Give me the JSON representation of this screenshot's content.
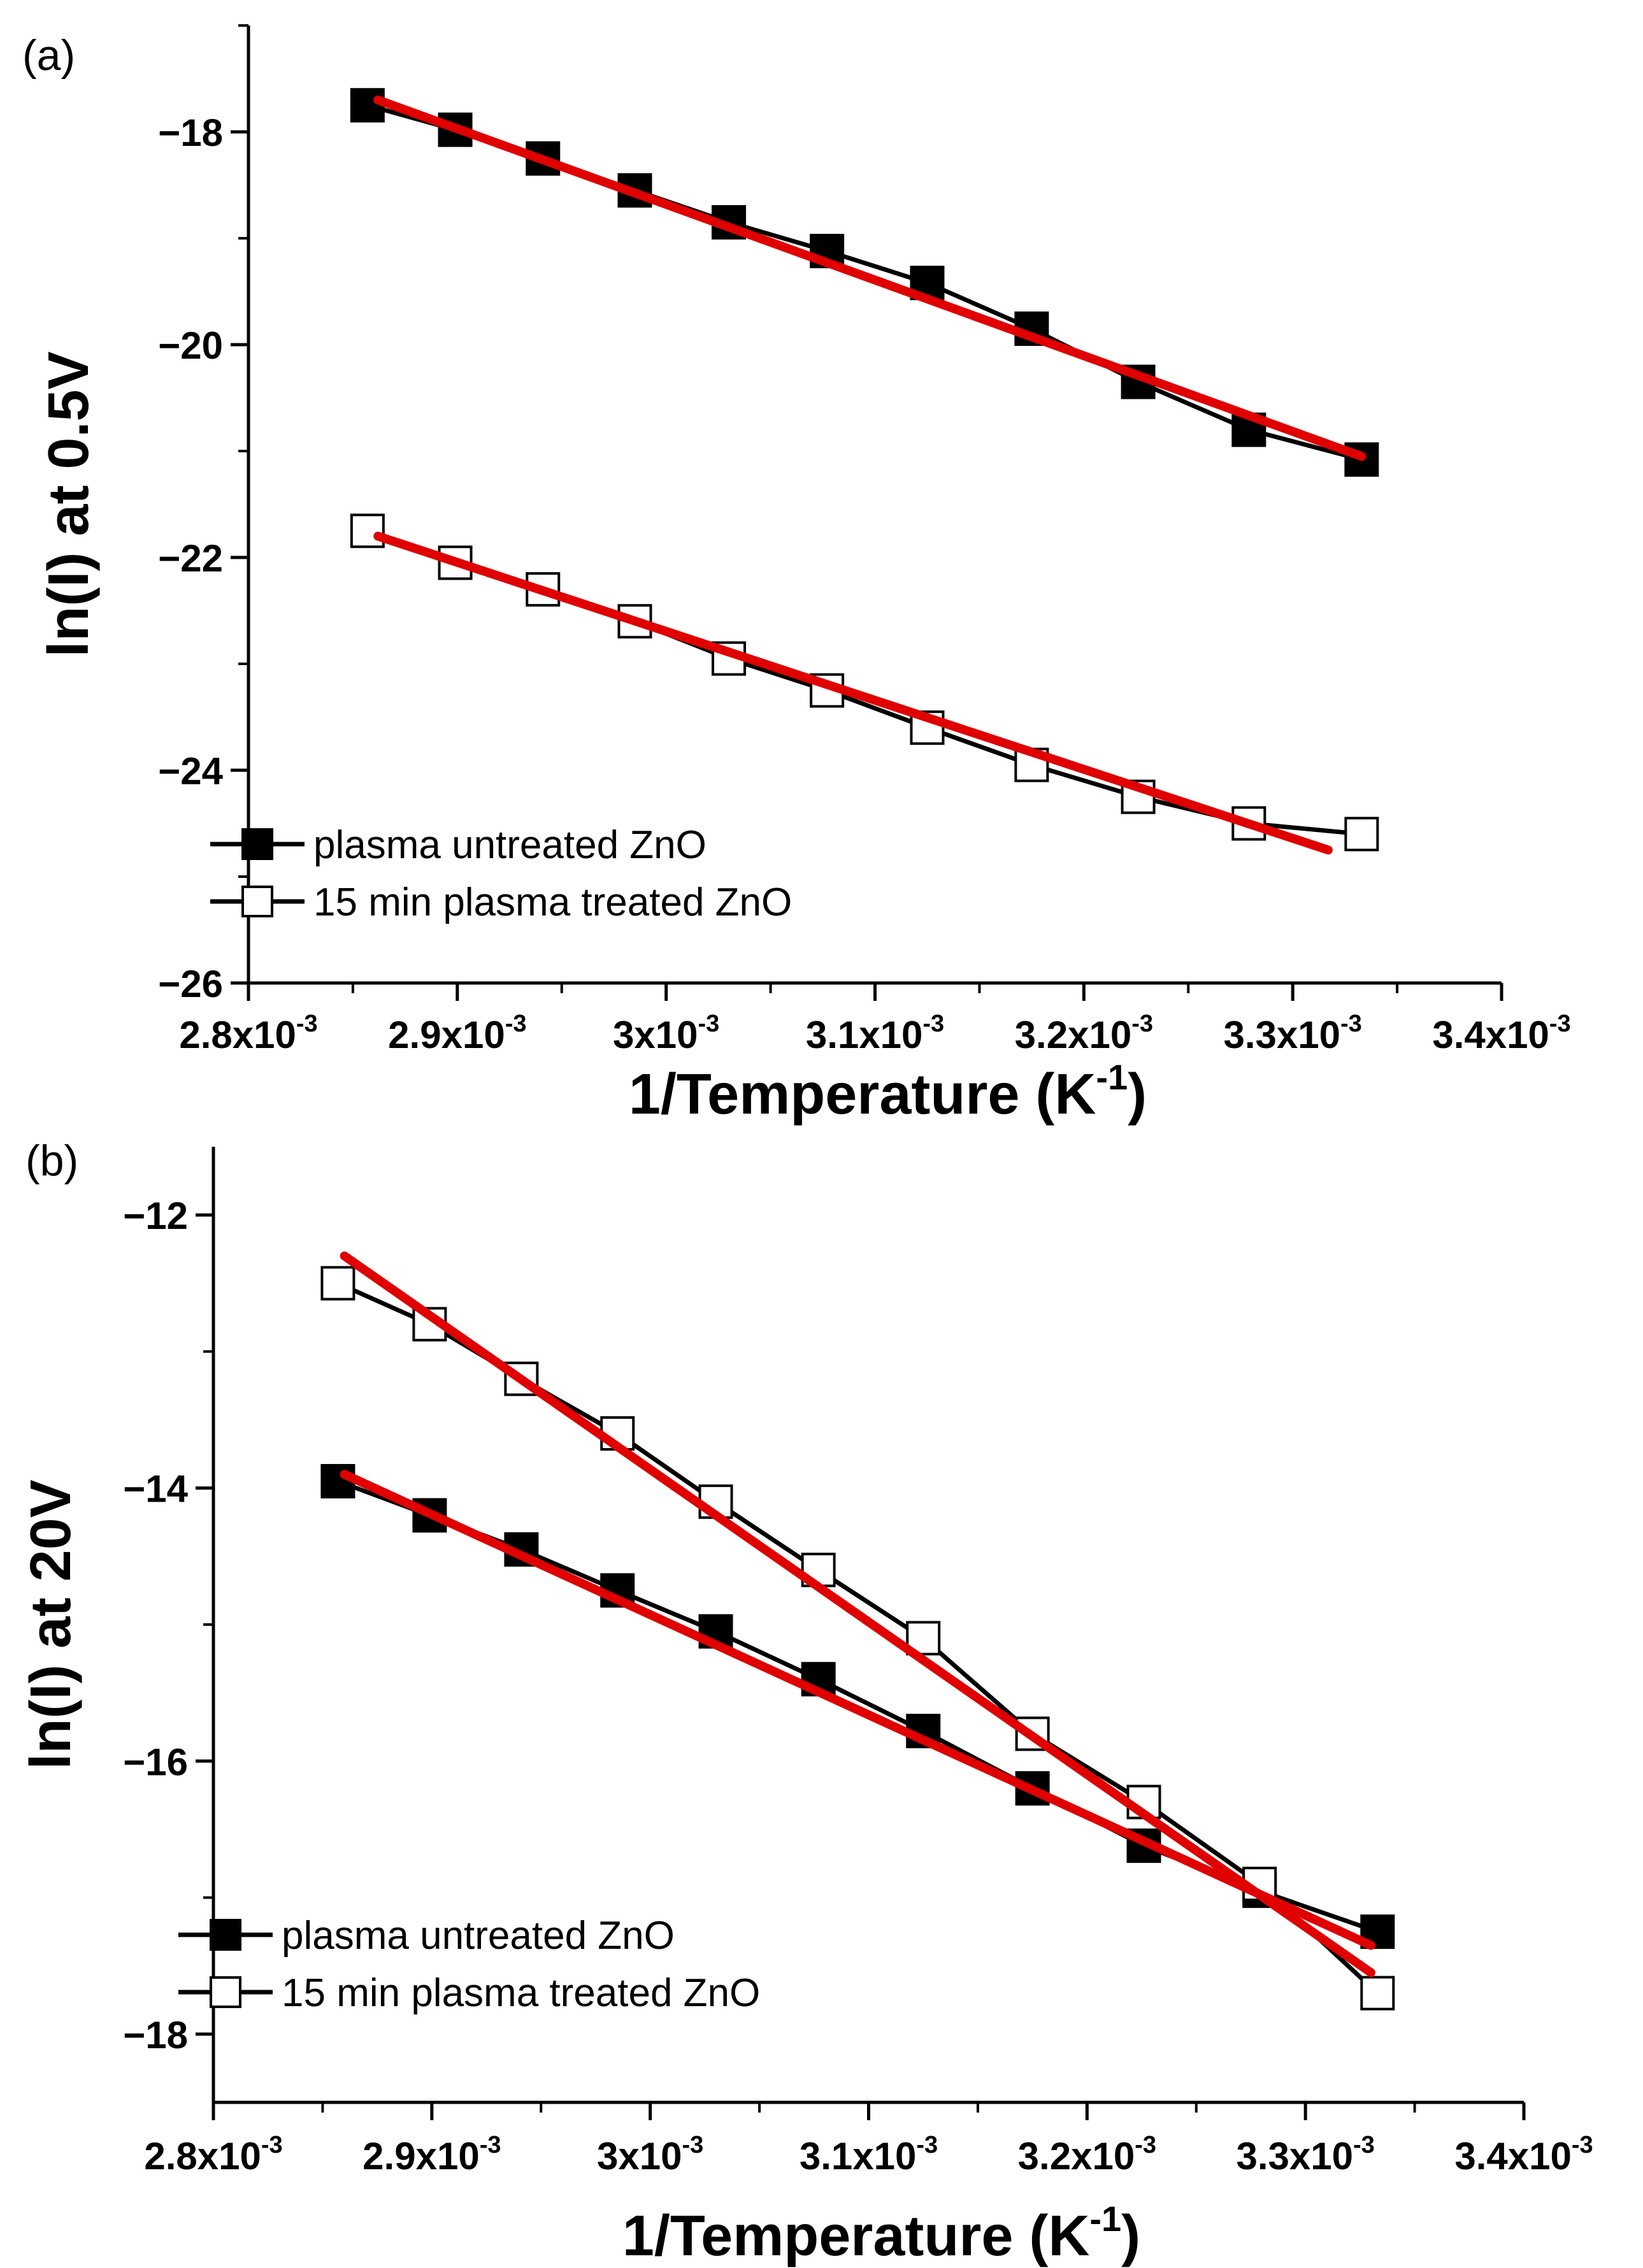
{
  "chart_data": [
    {
      "type": "line",
      "panel_label": "(a)",
      "ylabel": "ln(I) at 0.5V",
      "xlabel": {
        "main": "1/Temperature (K",
        "sup": "-1",
        "close": ")"
      },
      "xlim": [
        0.0028,
        0.0034
      ],
      "ylim": [
        -26,
        -17
      ],
      "x_ticks": [
        0.0028,
        0.0029,
        0.003,
        0.0031,
        0.0032,
        0.0033,
        0.0034
      ],
      "x_tick_labels": [
        {
          "base": "2.8x10",
          "exp": "-3"
        },
        {
          "base": "2.9x10",
          "exp": "-3"
        },
        {
          "base": "3x10",
          "exp": "-3"
        },
        {
          "base": "3.1x10",
          "exp": "-3"
        },
        {
          "base": "3.2x10",
          "exp": "-3"
        },
        {
          "base": "3.3x10",
          "exp": "-3"
        },
        {
          "base": "3.4x10",
          "exp": "-3"
        }
      ],
      "y_ticks": [
        -26,
        -24,
        -22,
        -20,
        -18
      ],
      "y_tick_labels": [
        "−26",
        "−24",
        "−22",
        "−20",
        "−18"
      ],
      "x": [
        0.002857,
        0.002899,
        0.002941,
        0.002985,
        0.00303,
        0.003077,
        0.003125,
        0.003175,
        0.003226,
        0.003279,
        0.003333
      ],
      "series": [
        {
          "name": "plasma untreated ZnO",
          "marker": "filled-square",
          "values": [
            -17.75,
            -17.98,
            -18.25,
            -18.55,
            -18.85,
            -19.12,
            -19.42,
            -19.85,
            -20.35,
            -20.8,
            -21.08
          ],
          "fit": {
            "x": [
              0.002862,
              0.003333
            ],
            "y": [
              -17.7,
              -21.05
            ]
          }
        },
        {
          "name": "15 min plasma treated ZnO",
          "marker": "open-square",
          "values": [
            -21.75,
            -22.05,
            -22.3,
            -22.6,
            -22.95,
            -23.25,
            -23.6,
            -23.95,
            -24.25,
            -24.5,
            -24.6
          ],
          "fit": {
            "x": [
              0.002862,
              0.003317
            ],
            "y": [
              -21.8,
              -24.75
            ]
          }
        }
      ],
      "legend": [
        "plasma untreated ZnO",
        "15 min plasma treated ZnO"
      ],
      "legend_position": "bottom-left",
      "fit_color": "#e00000"
    },
    {
      "type": "line",
      "panel_label": "(b)",
      "ylabel": "ln(I) at 20V",
      "xlabel": {
        "main": "1/Temperature (K",
        "sup": "-1",
        "close": ")"
      },
      "xlim": [
        0.0028,
        0.0034
      ],
      "ylim": [
        -18.5,
        -11.5
      ],
      "x_ticks": [
        0.0028,
        0.0029,
        0.003,
        0.0031,
        0.0032,
        0.0033,
        0.0034
      ],
      "x_tick_labels": [
        {
          "base": "2.8x10",
          "exp": "-3"
        },
        {
          "base": "2.9x10",
          "exp": "-3"
        },
        {
          "base": "3x10",
          "exp": "-3"
        },
        {
          "base": "3.1x10",
          "exp": "-3"
        },
        {
          "base": "3.2x10",
          "exp": "-3"
        },
        {
          "base": "3.3x10",
          "exp": "-3"
        },
        {
          "base": "3.4x10",
          "exp": "-3"
        }
      ],
      "y_ticks": [
        -18,
        -16,
        -14,
        -12
      ],
      "y_tick_labels": [
        "−18",
        "−16",
        "−14",
        "−12"
      ],
      "x": [
        0.002857,
        0.002899,
        0.002941,
        0.002985,
        0.00303,
        0.003077,
        0.003125,
        0.003175,
        0.003226,
        0.003279,
        0.003333
      ],
      "series": [
        {
          "name": "plasma untreated ZnO",
          "marker": "filled-square",
          "values": [
            -13.95,
            -14.2,
            -14.45,
            -14.75,
            -15.05,
            -15.4,
            -15.78,
            -16.2,
            -16.62,
            -16.95,
            -17.25
          ],
          "fit": {
            "x": [
              0.00286,
              0.00333
            ],
            "y": [
              -13.9,
              -17.35
            ]
          }
        },
        {
          "name": "15 min plasma treated ZnO",
          "marker": "open-square",
          "values": [
            -12.5,
            -12.8,
            -13.2,
            -13.6,
            -14.1,
            -14.6,
            -15.1,
            -15.8,
            -16.3,
            -16.9,
            -17.7
          ],
          "fit": {
            "x": [
              0.00286,
              0.00333
            ],
            "y": [
              -12.3,
              -17.55
            ]
          }
        }
      ],
      "legend": [
        "plasma untreated ZnO",
        "15 min plasma treated ZnO"
      ],
      "legend_position": "bottom-left",
      "fit_color": "#e00000"
    }
  ]
}
